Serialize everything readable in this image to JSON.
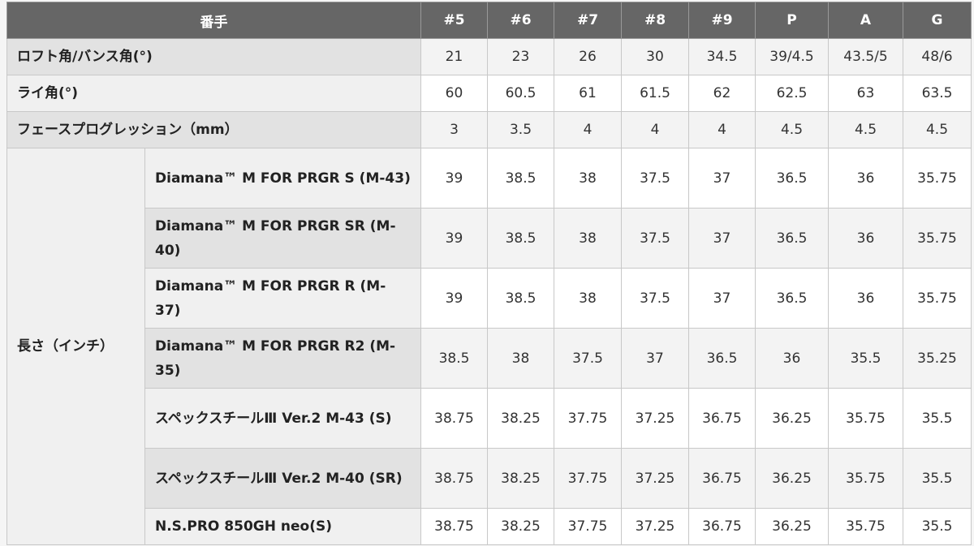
{
  "header": {
    "label": "番手",
    "clubs": [
      "#5",
      "#6",
      "#7",
      "#8",
      "#9",
      "P",
      "A",
      "G"
    ]
  },
  "rows": [
    {
      "label": "ロフト角/バンス角(°)",
      "values": [
        "21",
        "23",
        "26",
        "30",
        "34.5",
        "39/4.5",
        "43.5/5",
        "48/6"
      ]
    },
    {
      "label": "ライ角(°)",
      "values": [
        "60",
        "60.5",
        "61",
        "61.5",
        "62",
        "62.5",
        "63",
        "63.5"
      ]
    },
    {
      "label": "フェースプログレッション（mm）",
      "values": [
        "3",
        "3.5",
        "4",
        "4",
        "4",
        "4.5",
        "4.5",
        "4.5"
      ]
    }
  ],
  "length": {
    "label": "長さ（インチ）",
    "shafts": [
      {
        "label": "Diamana™ M FOR PRGR S (M-43)",
        "values": [
          "39",
          "38.5",
          "38",
          "37.5",
          "37",
          "36.5",
          "36",
          "35.75"
        ]
      },
      {
        "label": "Diamana™ M FOR PRGR SR (M-40)",
        "values": [
          "39",
          "38.5",
          "38",
          "37.5",
          "37",
          "36.5",
          "36",
          "35.75"
        ]
      },
      {
        "label": "Diamana™ M FOR PRGR R (M-37)",
        "values": [
          "39",
          "38.5",
          "38",
          "37.5",
          "37",
          "36.5",
          "36",
          "35.75"
        ]
      },
      {
        "label": "Diamana™ M FOR PRGR R2 (M-35)",
        "values": [
          "38.5",
          "38",
          "37.5",
          "37",
          "36.5",
          "36",
          "35.5",
          "35.25"
        ]
      },
      {
        "label": "スペックスチールⅢ Ver.2 M-43 (S)",
        "values": [
          "38.75",
          "38.25",
          "37.75",
          "37.25",
          "36.75",
          "36.25",
          "35.75",
          "35.5"
        ]
      },
      {
        "label": "スペックスチールⅢ Ver.2 M-40 (SR)",
        "values": [
          "38.75",
          "38.25",
          "37.75",
          "37.25",
          "36.75",
          "36.25",
          "35.75",
          "35.5"
        ]
      },
      {
        "label": "N.S.PRO 850GH neo(S)",
        "values": [
          "38.75",
          "38.25",
          "37.75",
          "37.25",
          "36.75",
          "36.25",
          "35.75",
          "35.5"
        ]
      }
    ]
  }
}
